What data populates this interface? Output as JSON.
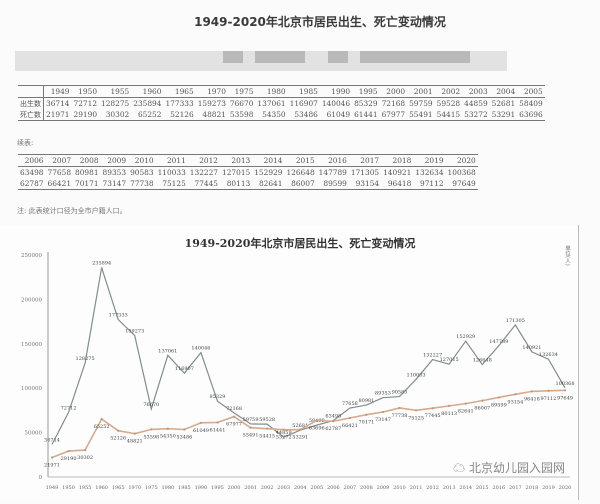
{
  "header": {
    "title": "1949-2020年北京市居民出生、死亡变动情况"
  },
  "table1": {
    "years": [
      "1949",
      "1950",
      "1955",
      "1960",
      "1965",
      "1970",
      "1975",
      "1980",
      "1985",
      "1990",
      "1995",
      "2000",
      "2001",
      "2002",
      "2003",
      "2004",
      "2005"
    ],
    "rows": [
      {
        "label": "出生数",
        "values": [
          "36714",
          "72712",
          "128275",
          "235894",
          "177333",
          "159273",
          "76670",
          "137061",
          "116907",
          "140046",
          "85329",
          "72168",
          "59759",
          "59528",
          "44859",
          "52681",
          "58409"
        ]
      },
      {
        "label": "死亡数",
        "values": [
          "21971",
          "29190",
          "30302",
          "65252",
          "52126",
          "48821",
          "53598",
          "54350",
          "53486",
          "61049",
          "61441",
          "67977",
          "55491",
          "54415",
          "53272",
          "53291",
          "63696"
        ]
      }
    ]
  },
  "continued_label": "续表:",
  "table2": {
    "years": [
      "2006",
      "2007",
      "2008",
      "2009",
      "2010",
      "2011",
      "2012",
      "2013",
      "2014",
      "2015",
      "2016",
      "2017",
      "2018",
      "2019",
      "2020"
    ],
    "rows": [
      {
        "values": [
          "63498",
          "77658",
          "80981",
          "89353",
          "90583",
          "110033",
          "132227",
          "127015",
          "152929",
          "126648",
          "147789",
          "171305",
          "140921",
          "132634",
          "100368"
        ]
      },
      {
        "values": [
          "62787",
          "66421",
          "70171",
          "73147",
          "77738",
          "75125",
          "77445",
          "80113",
          "82641",
          "86007",
          "89599",
          "93154",
          "96418",
          "97112",
          "97649"
        ]
      }
    ]
  },
  "note": "注: 此表统计口径为全市户籍人口。",
  "watermark": "北京幼儿园入园网",
  "chart_data": {
    "type": "line",
    "title": "1949-2020年北京市居民出生、死亡变动情况",
    "xlabel": "",
    "ylabel": "单位(人)",
    "ylim": [
      0,
      250000
    ],
    "yticks": [
      0,
      50000,
      100000,
      150000,
      200000,
      250000
    ],
    "grid": false,
    "legend": "none",
    "categories": [
      "1949",
      "1950",
      "1955",
      "1960",
      "1965",
      "1970",
      "1975",
      "1980",
      "1985",
      "1990",
      "1995",
      "2000",
      "2001",
      "2002",
      "2003",
      "2004",
      "2005",
      "2006",
      "2007",
      "2008",
      "2009",
      "2010",
      "2011",
      "2012",
      "2013",
      "2014",
      "2015",
      "2016",
      "2017",
      "2018",
      "2019",
      "2020"
    ],
    "series": [
      {
        "name": "出生数",
        "color": "#7f8f8c",
        "values": [
          36714,
          72712,
          128275,
          235894,
          177333,
          159273,
          76670,
          137061,
          116907,
          140046,
          85329,
          72168,
          59759,
          59528,
          44859,
          52681,
          58409,
          63498,
          77658,
          80981,
          89353,
          90583,
          110033,
          132227,
          127015,
          152929,
          126648,
          147789,
          171305,
          140921,
          132634,
          100368
        ]
      },
      {
        "name": "死亡数",
        "color": "#d9a98a",
        "values": [
          21971,
          29190,
          30302,
          65252,
          52126,
          48821,
          53598,
          54350,
          53486,
          61049,
          61441,
          67977,
          55491,
          54415,
          53272,
          53291,
          63696,
          62787,
          66421,
          70171,
          73147,
          77738,
          75125,
          77445,
          80113,
          82641,
          86007,
          89599,
          93154,
          96418,
          97112,
          97649
        ]
      }
    ]
  }
}
